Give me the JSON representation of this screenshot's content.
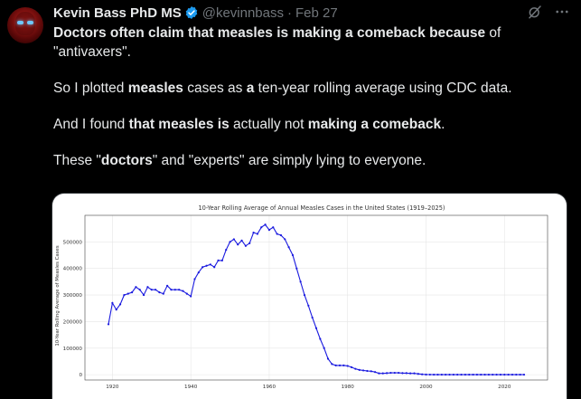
{
  "author": {
    "name": "Kevin Bass PhD MS",
    "handle": "@kevinnbass",
    "separator": "·",
    "date": "Feb 27"
  },
  "icons": {
    "avatar": "avatar-portrait",
    "verified": "verified-badge-icon",
    "grok": "grok-icon",
    "more": "more-options-icon"
  },
  "colors": {
    "background": "#000000",
    "text": "#e7e9ea",
    "muted": "#71767b",
    "verified": "#1d9bf0",
    "series": "#1a1adf"
  },
  "tweet": {
    "p1": [
      {
        "t": "Doctors often claim that measles is making a comeback because",
        "b": true
      },
      {
        "t": " of \"antivaxers\".",
        "b": false
      }
    ],
    "p2": [
      {
        "t": "So I plotted ",
        "b": false
      },
      {
        "t": "measles",
        "b": true
      },
      {
        "t": " cases as ",
        "b": false
      },
      {
        "t": "a",
        "b": true
      },
      {
        "t": " ten-year rolling average using CDC data.",
        "b": false
      }
    ],
    "p3": [
      {
        "t": "And I found ",
        "b": false
      },
      {
        "t": "that measles is",
        "b": true
      },
      {
        "t": " actually not ",
        "b": false
      },
      {
        "t": "making a comeback",
        "b": true
      },
      {
        "t": ".",
        "b": false
      }
    ],
    "p4": [
      {
        "t": "These \"",
        "b": false
      },
      {
        "t": "doctors",
        "b": true
      },
      {
        "t": "\" and \"experts\" are simply lying to everyone.",
        "b": false
      }
    ]
  },
  "chart_data": {
    "type": "line",
    "title": "10-Year Rolling Average of Annual Measles Cases in the United States (1919–2025)",
    "xlabel": "",
    "ylabel": "10-Year Rolling Average of Measles Cases",
    "xlim": [
      1913,
      2031
    ],
    "ylim": [
      -20000,
      600000
    ],
    "xticks": [
      1920,
      1940,
      1960,
      1980,
      2000,
      2020
    ],
    "yticks": [
      0,
      100000,
      200000,
      300000,
      400000,
      500000
    ],
    "ytick_labels": [
      "0",
      "100000",
      "200000",
      "300000",
      "400000",
      "500000"
    ],
    "grid": true,
    "marker": "dot",
    "series": [
      {
        "x": [
          1919,
          1920,
          1921,
          1922,
          1923,
          1924,
          1925,
          1926,
          1927,
          1928,
          1929,
          1930,
          1931,
          1932,
          1933,
          1934,
          1935,
          1936,
          1937,
          1938,
          1939,
          1940,
          1941,
          1942,
          1943,
          1944,
          1945,
          1946,
          1947,
          1948,
          1949,
          1950,
          1951,
          1952,
          1953,
          1954,
          1955,
          1956,
          1957,
          1958,
          1959,
          1960,
          1961,
          1962,
          1963,
          1964,
          1965,
          1966,
          1967,
          1968,
          1969,
          1970,
          1971,
          1972,
          1973,
          1974,
          1975,
          1976,
          1977,
          1978,
          1979,
          1980,
          1981,
          1982,
          1983,
          1984,
          1985,
          1986,
          1987,
          1988,
          1989,
          1990,
          1991,
          1992,
          1993,
          1994,
          1995,
          1996,
          1997,
          1998,
          1999,
          2000,
          2001,
          2002,
          2003,
          2004,
          2005,
          2006,
          2007,
          2008,
          2009,
          2010,
          2011,
          2012,
          2013,
          2014,
          2015,
          2016,
          2017,
          2018,
          2019,
          2020,
          2021,
          2022,
          2023,
          2024,
          2025
        ],
        "y": [
          190000,
          270000,
          245000,
          265000,
          300000,
          305000,
          310000,
          330000,
          320000,
          300000,
          330000,
          320000,
          320000,
          310000,
          305000,
          335000,
          320000,
          320000,
          320000,
          315000,
          305000,
          295000,
          360000,
          385000,
          405000,
          410000,
          415000,
          405000,
          430000,
          430000,
          470000,
          500000,
          510000,
          490000,
          505000,
          485000,
          495000,
          535000,
          530000,
          555000,
          565000,
          545000,
          555000,
          530000,
          525000,
          510000,
          480000,
          450000,
          400000,
          350000,
          300000,
          260000,
          215000,
          175000,
          135000,
          100000,
          60000,
          40000,
          35000,
          35000,
          35000,
          33000,
          28000,
          22000,
          18000,
          16000,
          14000,
          13000,
          10000,
          5000,
          5000,
          6000,
          7000,
          7000,
          7000,
          6000,
          6000,
          5000,
          5000,
          3000,
          1500,
          500,
          300,
          200,
          200,
          150,
          150,
          150,
          150,
          150,
          150,
          150,
          150,
          150,
          150,
          200,
          200,
          200,
          200,
          150,
          200,
          200,
          200,
          200,
          200,
          200,
          200
        ]
      }
    ]
  }
}
